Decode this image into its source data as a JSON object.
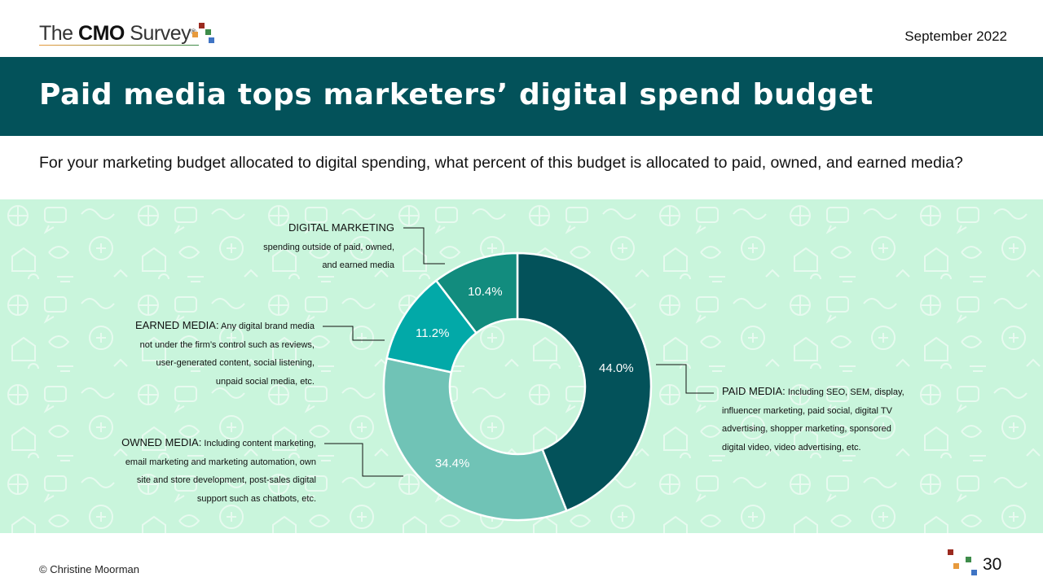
{
  "header": {
    "logo_text_pre": "The ",
    "logo_text_bold": "CMO",
    "logo_text_post": " Survey",
    "logo_reg": "®",
    "date": "September 2022"
  },
  "title": "Paid media tops marketers’ digital spend budget",
  "question": "For your marketing budget allocated to digital spending, what percent of this budget is allocated to paid, owned, and earned media?",
  "callouts": {
    "digital": {
      "head": "DIGITAL MARKETING",
      "line1": "spending outside of paid, owned,",
      "line2": "and earned media"
    },
    "earned": {
      "head": "EARNED MEDIA:",
      "line1_rest": "Any digital brand media",
      "line2": "not under the firm’s control such as reviews,",
      "line3": "user-generated content, social listening,",
      "line4": "unpaid social media, etc."
    },
    "owned": {
      "head": "OWNED MEDIA:",
      "line1_rest": "Including content marketing,",
      "line2": "email marketing and marketing automation, own",
      "line3": "site and store development, post-sales digital",
      "line4": "support such as chatbots, etc."
    },
    "paid": {
      "head": "PAID MEDIA:",
      "line1_rest": "Including SEO, SEM, display,",
      "line2": "influencer marketing, paid social, digital TV",
      "line3": "advertising, shopper marketing, sponsored",
      "line4": "digital video, video advertising, etc."
    }
  },
  "chart_data": {
    "type": "pie",
    "donut": true,
    "title": "",
    "categories": [
      "Paid media",
      "Owned media",
      "Earned media",
      "Digital marketing"
    ],
    "values": [
      44.0,
      34.4,
      11.2,
      10.4
    ],
    "labels": [
      "44.0%",
      "34.4%",
      "11.2%",
      "10.4%"
    ],
    "colors": [
      "#03525a",
      "#70c3b6",
      "#02a9a8",
      "#128c7e"
    ],
    "start": "top, clockwise"
  },
  "footer": {
    "copyright": "© Christine Moorman",
    "page_number": "30"
  },
  "colors": {
    "title_band": "#03525a",
    "chart_background": "#c9f5dc",
    "logo_red": "#9b2a1f",
    "logo_orange": "#e79a3d",
    "logo_green": "#3e8c4a",
    "logo_blue": "#3f74c4"
  }
}
